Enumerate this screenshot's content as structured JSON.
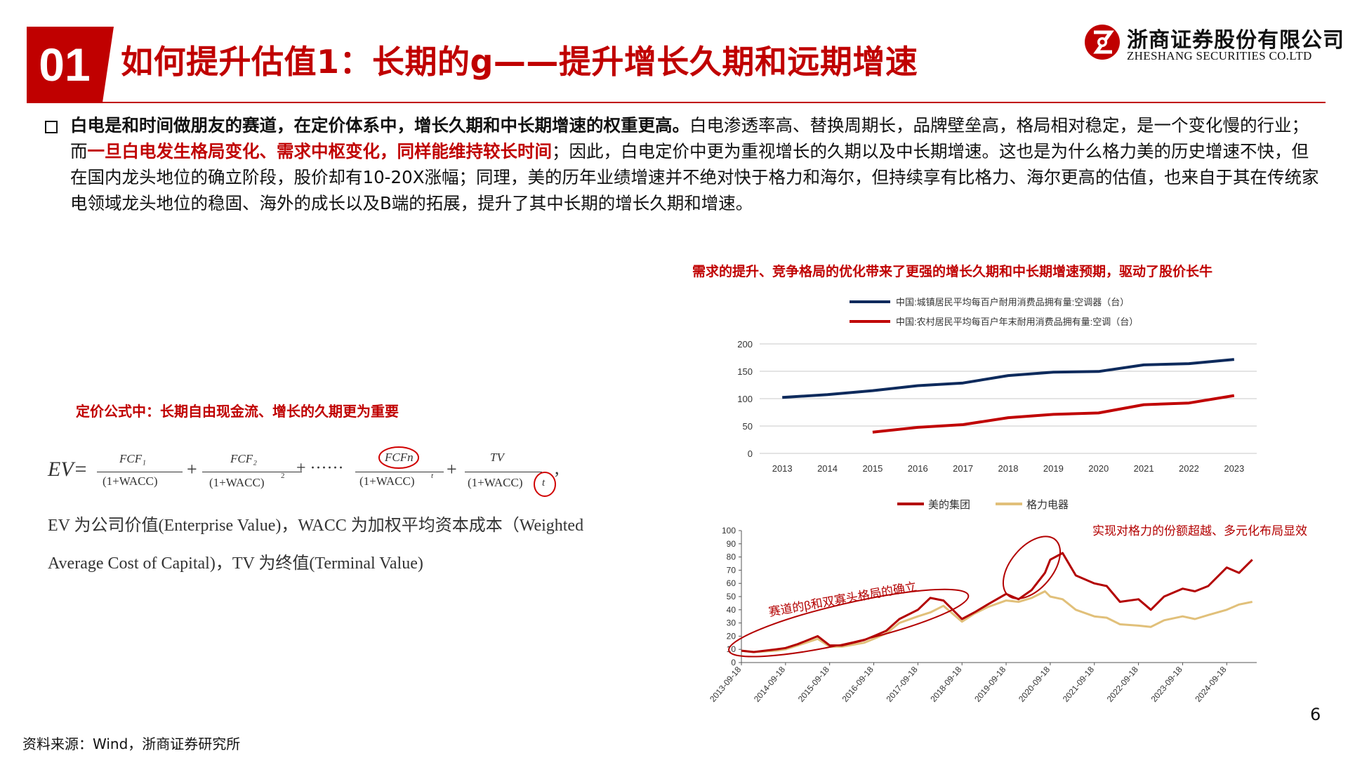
{
  "header": {
    "section_number": "01",
    "title": "如何提升估值1：长期的g——提升增长久期和远期增速",
    "logo_name": "浙商证券股份有限公司",
    "logo_en": "ZHESHANG SECURITIES CO.LTD",
    "brand_color": "#c00000"
  },
  "paragraph": {
    "s1": "白电是和时间做朋友的赛道，在定价体系中，增长久期和中长期增速的权重更高。",
    "s2": "白电渗透率高、替换周期长，品牌壁垒高，格局相对稳定，是一个变化慢的行业；而",
    "s3": "一旦白电发生格局变化、需求中枢变化，同样能维持较长时间",
    "s4": "；因此，白电定价中更为重视增长的久期以及中长期增速。这也是为什么格力美的历史增速不快，但在国内龙头地位的确立阶段，股价却有10-20X涨幅；同理，美的历年业绩增速并不绝对快于格力和海尔，但持续享有比格力、海尔更高的估值，也来自于其在传统家电领域龙头地位的稳固、海外的成长以及B端的拓展，提升了其中长期的增长久期和增速。"
  },
  "formula": {
    "caption": "定价公式中：长期自由现金流、增长的久期更为重要",
    "ev": "EV=",
    "t1_num": "FCF₁",
    "t1_den": "(1+WACC)",
    "t2_num": "FCF₂",
    "t2_den": "(1+WACC)",
    "t2_exp": "2",
    "dots": "+ ······",
    "t3_num": "FCFn",
    "t3_den": "(1+WACC)",
    "t3_exp": "t",
    "t4_num": "TV",
    "t4_den": "(1+WACC)",
    "t4_exp": "t",
    "plus": "+",
    "comma": ",",
    "desc1": "EV 为公司价值(Enterprise Value)，WACC 为加权平均资本成本（Weighted",
    "desc2": "Average Cost of Capital)，TV 为终值(Terminal Value)"
  },
  "chart_caption": "需求的提升、竞争格局的优化带来了更强的增长久期和中长期增速预期，驱动了股价长牛",
  "chart_data": [
    {
      "type": "line",
      "x": [
        2013,
        2014,
        2015,
        2016,
        2017,
        2018,
        2019,
        2020,
        2021,
        2022,
        2023
      ],
      "series": [
        {
          "name": "中国:城镇居民平均每百户耐用消费品拥有量:空调器（台）",
          "color": "#0d2a5c",
          "values": [
            102.2,
            107.4,
            114.6,
            123.7,
            128.6,
            142.2,
            148.3,
            149.6,
            161.7,
            164.0,
            171.7
          ]
        },
        {
          "name": "中国:农村居民平均每百户年末耐用消费品拥有量:空调（台）",
          "color": "#c00000",
          "values": [
            null,
            null,
            38.8,
            47.6,
            52.6,
            65.2,
            71.3,
            73.8,
            89.0,
            92.0,
            105.7
          ]
        }
      ],
      "xlabel": "",
      "ylabel": "",
      "ylim": [
        0,
        200
      ],
      "yticks": [
        0,
        50,
        100,
        150,
        200
      ],
      "grid": true,
      "legend": "top"
    },
    {
      "type": "line",
      "xticks": [
        "2013-09-18",
        "2014-09-18",
        "2015-09-18",
        "2016-09-18",
        "2017-09-18",
        "2018-09-18",
        "2019-09-18",
        "2020-09-18",
        "2021-09-18",
        "2022-09-18",
        "2023-09-18",
        "2024-09-18"
      ],
      "x": [
        2013.72,
        2014.0,
        2014.5,
        2014.72,
        2015.0,
        2015.45,
        2015.72,
        2016.0,
        2016.5,
        2016.72,
        2017.0,
        2017.3,
        2017.72,
        2018.0,
        2018.3,
        2018.72,
        2019.0,
        2019.3,
        2019.72,
        2020.0,
        2020.3,
        2020.6,
        2020.72,
        2021.0,
        2021.3,
        2021.72,
        2022.0,
        2022.3,
        2022.72,
        2023.0,
        2023.3,
        2023.72,
        2024.0,
        2024.3,
        2024.72,
        2025.0,
        2025.3
      ],
      "series": [
        {
          "name": "美的集团",
          "color": "#b30000",
          "values": [
            9,
            8,
            10,
            11,
            14,
            20,
            13,
            13,
            17,
            20,
            24,
            33,
            40,
            49,
            47,
            33,
            38,
            44,
            52,
            48,
            55,
            68,
            78,
            83,
            66,
            60,
            58,
            46,
            48,
            40,
            50,
            56,
            54,
            58,
            72,
            68,
            78
          ]
        },
        {
          "name": "格力电器",
          "color": "#e1c07a",
          "values": [
            9,
            8,
            9,
            10,
            13,
            18,
            12,
            12,
            15,
            18,
            22,
            30,
            35,
            38,
            43,
            31,
            37,
            42,
            47,
            46,
            49,
            54,
            50,
            48,
            40,
            35,
            34,
            29,
            28,
            27,
            32,
            35,
            33,
            36,
            40,
            44,
            46
          ]
        }
      ],
      "ylim": [
        0,
        100
      ],
      "yticks": [
        0,
        10,
        20,
        30,
        40,
        50,
        60,
        70,
        80,
        90,
        100
      ],
      "grid": false,
      "legend": "top",
      "annotations": [
        "赛道的β和双寡头格局的确立",
        "实现对格力的份额超越、多元化布局显效"
      ]
    }
  ],
  "footer": {
    "source": "资料来源：Wind，浙商证券研究所",
    "page": "6"
  }
}
